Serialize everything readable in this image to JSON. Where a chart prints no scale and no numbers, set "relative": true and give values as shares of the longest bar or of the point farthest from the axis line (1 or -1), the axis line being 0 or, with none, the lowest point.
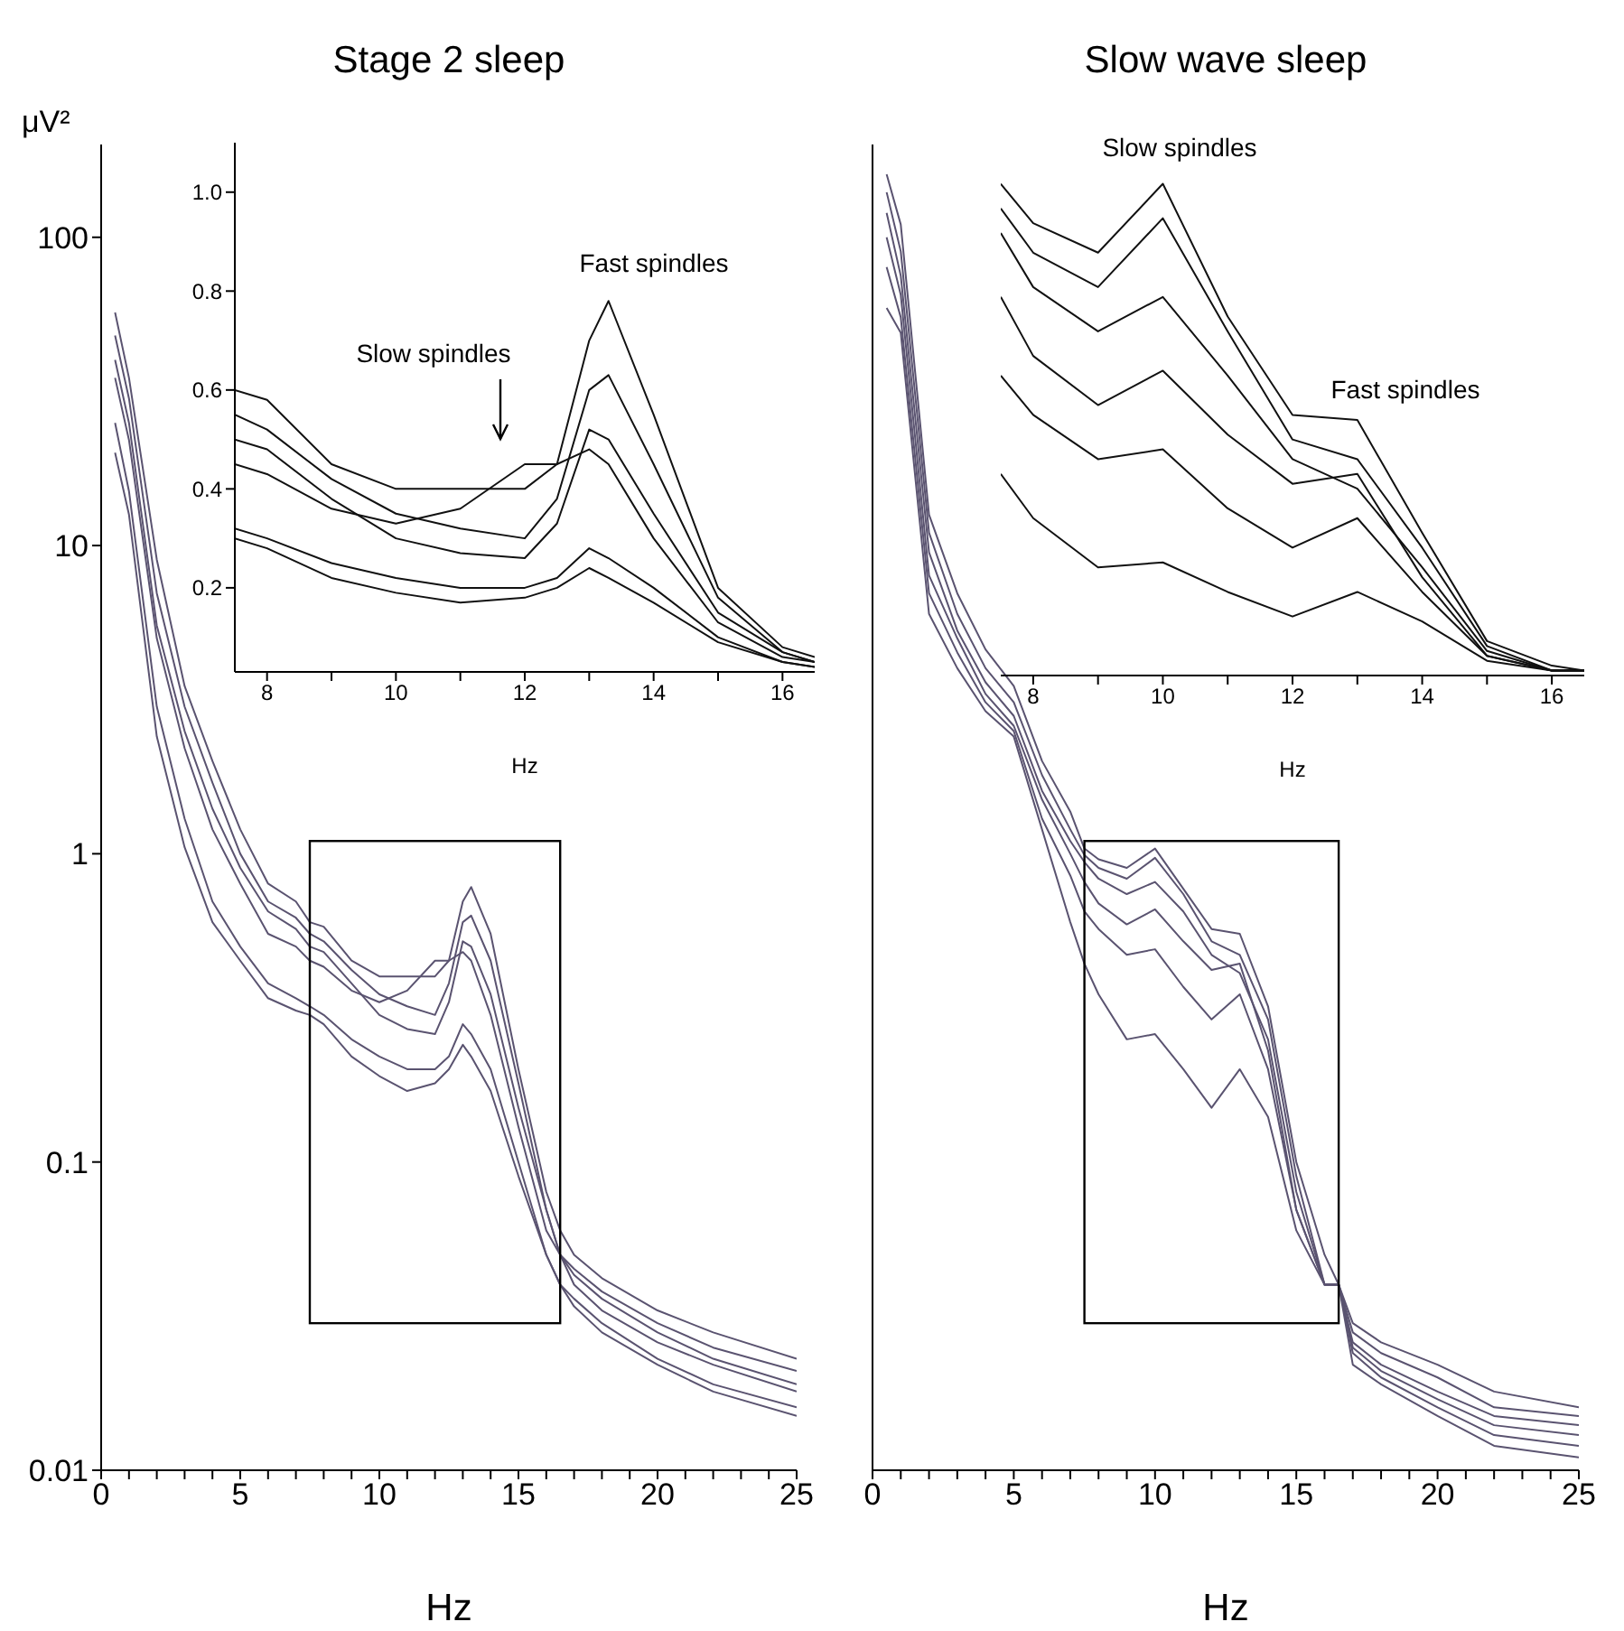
{
  "chart_data": [
    {
      "type": "line",
      "title": "Stage 2 sleep",
      "xlabel": "Hz",
      "ylabel": "μV²",
      "log": true,
      "xlim": [
        0,
        25
      ],
      "ylim": [
        0.01,
        200
      ],
      "xticks": [
        0,
        {
          "value": 1,
          "label": null
        },
        {
          "value": 2,
          "label": null
        },
        {
          "value": 3,
          "label": null
        },
        {
          "value": 4,
          "label": null
        },
        5,
        {
          "value": 6,
          "label": null
        },
        {
          "value": 7,
          "label": null
        },
        {
          "value": 8,
          "label": null
        },
        {
          "value": 9,
          "label": null
        },
        10,
        {
          "value": 11,
          "label": null
        },
        {
          "value": 12,
          "label": null
        },
        {
          "value": 13,
          "label": null
        },
        {
          "value": 14,
          "label": null
        },
        15,
        {
          "value": 16,
          "label": null
        },
        {
          "value": 17,
          "label": null
        },
        {
          "value": 18,
          "label": null
        },
        {
          "value": 19,
          "label": null
        },
        20,
        {
          "value": 21,
          "label": null
        },
        {
          "value": 22,
          "label": null
        },
        {
          "value": 23,
          "label": null
        },
        {
          "value": 24,
          "label": null
        },
        25
      ],
      "yticks": [
        0.01,
        0.1,
        1,
        10,
        100
      ],
      "x": [
        0.5,
        1,
        2,
        3,
        4,
        5,
        6,
        7,
        7.5,
        8,
        9,
        10,
        11,
        12,
        12.5,
        13,
        13.3,
        14,
        15,
        16,
        16.5,
        17,
        18,
        20,
        22,
        25
      ],
      "series": [
        {
          "color": "#5a5370",
          "values": [
            57,
            35,
            9,
            3.5,
            2,
            1.2,
            0.8,
            0.7,
            0.6,
            0.58,
            0.45,
            0.4,
            0.4,
            0.4,
            0.45,
            0.7,
            0.78,
            0.55,
            0.2,
            0.08,
            0.06,
            0.05,
            0.042,
            0.033,
            0.028,
            0.023
          ]
        },
        {
          "color": "#5a5370",
          "values": [
            48,
            30,
            7,
            3,
            1.7,
            1.0,
            0.7,
            0.62,
            0.55,
            0.52,
            0.42,
            0.35,
            0.32,
            0.3,
            0.38,
            0.6,
            0.63,
            0.45,
            0.18,
            0.07,
            0.05,
            0.045,
            0.038,
            0.03,
            0.025,
            0.021
          ]
        },
        {
          "color": "#5a5370",
          "values": [
            40,
            25,
            5.5,
            2.5,
            1.4,
            0.9,
            0.65,
            0.57,
            0.5,
            0.48,
            0.38,
            0.3,
            0.27,
            0.26,
            0.33,
            0.52,
            0.5,
            0.35,
            0.15,
            0.07,
            0.05,
            0.043,
            0.036,
            0.028,
            0.023,
            0.019
          ]
        },
        {
          "color": "#5a5370",
          "values": [
            35,
            22,
            5,
            2.2,
            1.2,
            0.8,
            0.55,
            0.5,
            0.45,
            0.43,
            0.36,
            0.33,
            0.36,
            0.45,
            0.45,
            0.48,
            0.45,
            0.3,
            0.13,
            0.06,
            0.05,
            0.04,
            0.033,
            0.026,
            0.022,
            0.018
          ]
        },
        {
          "color": "#5a5370",
          "values": [
            25,
            15,
            3,
            1.3,
            0.7,
            0.5,
            0.38,
            0.34,
            0.32,
            0.3,
            0.25,
            0.22,
            0.2,
            0.2,
            0.22,
            0.28,
            0.26,
            0.2,
            0.1,
            0.05,
            0.04,
            0.036,
            0.03,
            0.023,
            0.019,
            0.016
          ]
        },
        {
          "color": "#5a5370",
          "values": [
            20,
            12.6,
            2.4,
            1.05,
            0.6,
            0.45,
            0.34,
            0.31,
            0.3,
            0.28,
            0.22,
            0.19,
            0.17,
            0.18,
            0.2,
            0.24,
            0.22,
            0.17,
            0.09,
            0.05,
            0.04,
            0.034,
            0.028,
            0.022,
            0.018,
            0.015
          ]
        }
      ]
    },
    {
      "type": "line",
      "xlabel": "Hz",
      "xlim": [
        7.5,
        16.5
      ],
      "ylim": [
        0.03,
        1.1
      ],
      "xticks": [
        8,
        {
          "value": 9,
          "label": null
        },
        10,
        {
          "value": 11,
          "label": null
        },
        12,
        {
          "value": 13,
          "label": null
        },
        14,
        {
          "value": 15,
          "label": null
        },
        16
      ],
      "yticks": [
        0.2,
        0.4,
        0.6,
        0.8,
        {
          "value": 1,
          "label": "1.0"
        }
      ],
      "x": [
        7.5,
        8,
        9,
        10,
        11,
        12,
        12.5,
        13,
        13.3,
        14,
        15,
        16,
        16.5
      ],
      "annotations": [
        "Slow spindles",
        "Fast spindles"
      ],
      "series": [
        {
          "color": "#111111",
          "values": [
            0.6,
            0.58,
            0.45,
            0.4,
            0.4,
            0.4,
            0.45,
            0.7,
            0.78,
            0.55,
            0.2,
            0.08,
            0.06
          ]
        },
        {
          "color": "#111111",
          "values": [
            0.55,
            0.52,
            0.42,
            0.35,
            0.32,
            0.3,
            0.38,
            0.6,
            0.63,
            0.45,
            0.18,
            0.07,
            0.05
          ]
        },
        {
          "color": "#111111",
          "values": [
            0.5,
            0.48,
            0.38,
            0.3,
            0.27,
            0.26,
            0.33,
            0.52,
            0.5,
            0.35,
            0.15,
            0.07,
            0.05
          ]
        },
        {
          "color": "#111111",
          "values": [
            0.45,
            0.43,
            0.36,
            0.33,
            0.36,
            0.45,
            0.45,
            0.48,
            0.45,
            0.3,
            0.13,
            0.06,
            0.05
          ]
        },
        {
          "color": "#111111",
          "values": [
            0.32,
            0.3,
            0.25,
            0.22,
            0.2,
            0.2,
            0.22,
            0.28,
            0.26,
            0.2,
            0.1,
            0.05,
            0.04
          ]
        },
        {
          "color": "#111111",
          "values": [
            0.3,
            0.28,
            0.22,
            0.19,
            0.17,
            0.18,
            0.2,
            0.24,
            0.22,
            0.17,
            0.09,
            0.05,
            0.04
          ]
        }
      ]
    },
    {
      "type": "line",
      "title": "Slow wave sleep",
      "xlabel": "Hz",
      "log": true,
      "tick_labels": "x",
      "xlim": [
        0,
        25
      ],
      "ylim": [
        0.01,
        200
      ],
      "xticks": [
        0,
        {
          "value": 1,
          "label": null
        },
        {
          "value": 2,
          "label": null
        },
        {
          "value": 3,
          "label": null
        },
        {
          "value": 4,
          "label": null
        },
        5,
        {
          "value": 6,
          "label": null
        },
        {
          "value": 7,
          "label": null
        },
        {
          "value": 8,
          "label": null
        },
        {
          "value": 9,
          "label": null
        },
        10,
        {
          "value": 11,
          "label": null
        },
        {
          "value": 12,
          "label": null
        },
        {
          "value": 13,
          "label": null
        },
        {
          "value": 14,
          "label": null
        },
        15,
        {
          "value": 16,
          "label": null
        },
        {
          "value": 17,
          "label": null
        },
        {
          "value": 18,
          "label": null
        },
        {
          "value": 19,
          "label": null
        },
        20,
        {
          "value": 21,
          "label": null
        },
        {
          "value": 22,
          "label": null
        },
        {
          "value": 23,
          "label": null
        },
        {
          "value": 24,
          "label": null
        },
        25
      ],
      "x": [
        0.5,
        1,
        2,
        3,
        4,
        5,
        6,
        7,
        7.5,
        8,
        9,
        10,
        11,
        12,
        13,
        14,
        15,
        16,
        16.5,
        17,
        18,
        20,
        22,
        25
      ],
      "series": [
        {
          "color": "#5a5370",
          "values": [
            160,
            110,
            12.6,
            7,
            4.6,
            3.5,
            2,
            1.37,
            1.04,
            0.96,
            0.9,
            1.04,
            0.77,
            0.57,
            0.55,
            0.32,
            0.1,
            0.05,
            0.04,
            0.03,
            0.026,
            0.022,
            0.018,
            0.016
          ]
        },
        {
          "color": "#5a5370",
          "values": [
            140,
            90,
            11,
            6,
            4,
            3.1,
            1.8,
            1.2,
            0.99,
            0.9,
            0.83,
            0.97,
            0.74,
            0.52,
            0.47,
            0.29,
            0.09,
            0.04,
            0.04,
            0.028,
            0.024,
            0.02,
            0.016,
            0.015
          ]
        },
        {
          "color": "#5a5370",
          "values": [
            120,
            75,
            9.5,
            5.3,
            3.6,
            2.8,
            1.6,
            1.1,
            0.94,
            0.83,
            0.74,
            0.81,
            0.65,
            0.47,
            0.41,
            0.25,
            0.08,
            0.04,
            0.04,
            0.026,
            0.022,
            0.018,
            0.015,
            0.014
          ]
        },
        {
          "color": "#5a5370",
          "values": [
            100,
            65,
            8,
            5,
            3.3,
            2.6,
            1.5,
            1.0,
            0.81,
            0.69,
            0.59,
            0.66,
            0.52,
            0.42,
            0.44,
            0.23,
            0.07,
            0.04,
            0.04,
            0.025,
            0.021,
            0.017,
            0.014,
            0.013
          ]
        },
        {
          "color": "#5a5370",
          "values": [
            80,
            55,
            7,
            4.5,
            3.1,
            2.5,
            1.3,
            0.85,
            0.65,
            0.57,
            0.47,
            0.49,
            0.37,
            0.29,
            0.35,
            0.2,
            0.07,
            0.04,
            0.04,
            0.024,
            0.02,
            0.016,
            0.013,
            0.012
          ]
        },
        {
          "color": "#5a5370",
          "values": [
            59,
            49,
            6,
            4,
            2.9,
            2.4,
            1.2,
            0.6,
            0.44,
            0.35,
            0.25,
            0.26,
            0.2,
            0.15,
            0.2,
            0.14,
            0.06,
            0.04,
            0.04,
            0.022,
            0.019,
            0.015,
            0.012,
            0.011
          ]
        }
      ]
    },
    {
      "type": "line",
      "xlabel": "Hz",
      "relative": true,
      "xlim": [
        7.5,
        16.5
      ],
      "xticks": [
        8,
        {
          "value": 9,
          "label": null
        },
        10,
        {
          "value": 11,
          "label": null
        },
        12,
        {
          "value": 13,
          "label": null
        },
        14,
        {
          "value": 15,
          "label": null
        },
        16
      ],
      "x": [
        7.5,
        8,
        9,
        10,
        11,
        12,
        13,
        14,
        15,
        16,
        16.5
      ],
      "annotations": [
        "Slow spindles",
        "Fast spindles"
      ],
      "series": [
        {
          "color": "#111111",
          "values": [
            1.0,
            0.92,
            0.86,
            1.0,
            0.73,
            0.53,
            0.52,
            0.29,
            0.07,
            0.02,
            0.01
          ]
        },
        {
          "color": "#111111",
          "values": [
            0.95,
            0.86,
            0.79,
            0.93,
            0.7,
            0.48,
            0.44,
            0.26,
            0.06,
            0.01,
            0.01
          ]
        },
        {
          "color": "#111111",
          "values": [
            0.9,
            0.79,
            0.7,
            0.77,
            0.61,
            0.44,
            0.38,
            0.22,
            0.05,
            0.01,
            0.01
          ]
        },
        {
          "color": "#111111",
          "values": [
            0.77,
            0.65,
            0.55,
            0.62,
            0.49,
            0.39,
            0.41,
            0.2,
            0.04,
            0.01,
            0.01
          ]
        },
        {
          "color": "#111111",
          "values": [
            0.61,
            0.53,
            0.44,
            0.46,
            0.34,
            0.26,
            0.32,
            0.17,
            0.04,
            0.01,
            0.01
          ]
        },
        {
          "color": "#111111",
          "values": [
            0.41,
            0.32,
            0.22,
            0.23,
            0.17,
            0.12,
            0.17,
            0.11,
            0.03,
            0.01,
            0.01
          ]
        }
      ]
    }
  ]
}
